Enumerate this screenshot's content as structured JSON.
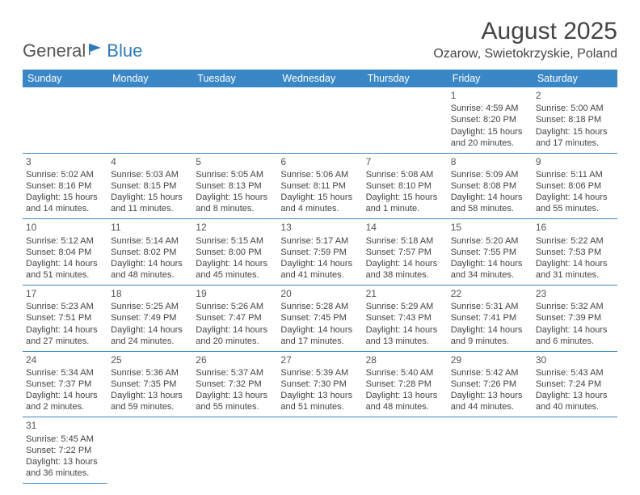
{
  "logo": {
    "general": "General",
    "blue": "Blue"
  },
  "title": "August 2025",
  "location": "Ozarow, Swietokrzyskie, Poland",
  "colors": {
    "header_bg": "#3a87c8",
    "header_text": "#ffffff",
    "border": "#3a87c8",
    "text": "#3a3a3a",
    "logo_blue": "#2c7bbf"
  },
  "day_headers": [
    "Sunday",
    "Monday",
    "Tuesday",
    "Wednesday",
    "Thursday",
    "Friday",
    "Saturday"
  ],
  "weeks": [
    [
      null,
      null,
      null,
      null,
      null,
      {
        "n": "1",
        "sr": "Sunrise: 4:59 AM",
        "ss": "Sunset: 8:20 PM",
        "dl": "Daylight: 15 hours and 20 minutes."
      },
      {
        "n": "2",
        "sr": "Sunrise: 5:00 AM",
        "ss": "Sunset: 8:18 PM",
        "dl": "Daylight: 15 hours and 17 minutes."
      }
    ],
    [
      {
        "n": "3",
        "sr": "Sunrise: 5:02 AM",
        "ss": "Sunset: 8:16 PM",
        "dl": "Daylight: 15 hours and 14 minutes."
      },
      {
        "n": "4",
        "sr": "Sunrise: 5:03 AM",
        "ss": "Sunset: 8:15 PM",
        "dl": "Daylight: 15 hours and 11 minutes."
      },
      {
        "n": "5",
        "sr": "Sunrise: 5:05 AM",
        "ss": "Sunset: 8:13 PM",
        "dl": "Daylight: 15 hours and 8 minutes."
      },
      {
        "n": "6",
        "sr": "Sunrise: 5:06 AM",
        "ss": "Sunset: 8:11 PM",
        "dl": "Daylight: 15 hours and 4 minutes."
      },
      {
        "n": "7",
        "sr": "Sunrise: 5:08 AM",
        "ss": "Sunset: 8:10 PM",
        "dl": "Daylight: 15 hours and 1 minute."
      },
      {
        "n": "8",
        "sr": "Sunrise: 5:09 AM",
        "ss": "Sunset: 8:08 PM",
        "dl": "Daylight: 14 hours and 58 minutes."
      },
      {
        "n": "9",
        "sr": "Sunrise: 5:11 AM",
        "ss": "Sunset: 8:06 PM",
        "dl": "Daylight: 14 hours and 55 minutes."
      }
    ],
    [
      {
        "n": "10",
        "sr": "Sunrise: 5:12 AM",
        "ss": "Sunset: 8:04 PM",
        "dl": "Daylight: 14 hours and 51 minutes."
      },
      {
        "n": "11",
        "sr": "Sunrise: 5:14 AM",
        "ss": "Sunset: 8:02 PM",
        "dl": "Daylight: 14 hours and 48 minutes."
      },
      {
        "n": "12",
        "sr": "Sunrise: 5:15 AM",
        "ss": "Sunset: 8:00 PM",
        "dl": "Daylight: 14 hours and 45 minutes."
      },
      {
        "n": "13",
        "sr": "Sunrise: 5:17 AM",
        "ss": "Sunset: 7:59 PM",
        "dl": "Daylight: 14 hours and 41 minutes."
      },
      {
        "n": "14",
        "sr": "Sunrise: 5:18 AM",
        "ss": "Sunset: 7:57 PM",
        "dl": "Daylight: 14 hours and 38 minutes."
      },
      {
        "n": "15",
        "sr": "Sunrise: 5:20 AM",
        "ss": "Sunset: 7:55 PM",
        "dl": "Daylight: 14 hours and 34 minutes."
      },
      {
        "n": "16",
        "sr": "Sunrise: 5:22 AM",
        "ss": "Sunset: 7:53 PM",
        "dl": "Daylight: 14 hours and 31 minutes."
      }
    ],
    [
      {
        "n": "17",
        "sr": "Sunrise: 5:23 AM",
        "ss": "Sunset: 7:51 PM",
        "dl": "Daylight: 14 hours and 27 minutes."
      },
      {
        "n": "18",
        "sr": "Sunrise: 5:25 AM",
        "ss": "Sunset: 7:49 PM",
        "dl": "Daylight: 14 hours and 24 minutes."
      },
      {
        "n": "19",
        "sr": "Sunrise: 5:26 AM",
        "ss": "Sunset: 7:47 PM",
        "dl": "Daylight: 14 hours and 20 minutes."
      },
      {
        "n": "20",
        "sr": "Sunrise: 5:28 AM",
        "ss": "Sunset: 7:45 PM",
        "dl": "Daylight: 14 hours and 17 minutes."
      },
      {
        "n": "21",
        "sr": "Sunrise: 5:29 AM",
        "ss": "Sunset: 7:43 PM",
        "dl": "Daylight: 14 hours and 13 minutes."
      },
      {
        "n": "22",
        "sr": "Sunrise: 5:31 AM",
        "ss": "Sunset: 7:41 PM",
        "dl": "Daylight: 14 hours and 9 minutes."
      },
      {
        "n": "23",
        "sr": "Sunrise: 5:32 AM",
        "ss": "Sunset: 7:39 PM",
        "dl": "Daylight: 14 hours and 6 minutes."
      }
    ],
    [
      {
        "n": "24",
        "sr": "Sunrise: 5:34 AM",
        "ss": "Sunset: 7:37 PM",
        "dl": "Daylight: 14 hours and 2 minutes."
      },
      {
        "n": "25",
        "sr": "Sunrise: 5:36 AM",
        "ss": "Sunset: 7:35 PM",
        "dl": "Daylight: 13 hours and 59 minutes."
      },
      {
        "n": "26",
        "sr": "Sunrise: 5:37 AM",
        "ss": "Sunset: 7:32 PM",
        "dl": "Daylight: 13 hours and 55 minutes."
      },
      {
        "n": "27",
        "sr": "Sunrise: 5:39 AM",
        "ss": "Sunset: 7:30 PM",
        "dl": "Daylight: 13 hours and 51 minutes."
      },
      {
        "n": "28",
        "sr": "Sunrise: 5:40 AM",
        "ss": "Sunset: 7:28 PM",
        "dl": "Daylight: 13 hours and 48 minutes."
      },
      {
        "n": "29",
        "sr": "Sunrise: 5:42 AM",
        "ss": "Sunset: 7:26 PM",
        "dl": "Daylight: 13 hours and 44 minutes."
      },
      {
        "n": "30",
        "sr": "Sunrise: 5:43 AM",
        "ss": "Sunset: 7:24 PM",
        "dl": "Daylight: 13 hours and 40 minutes."
      }
    ],
    [
      {
        "n": "31",
        "sr": "Sunrise: 5:45 AM",
        "ss": "Sunset: 7:22 PM",
        "dl": "Daylight: 13 hours and 36 minutes."
      },
      null,
      null,
      null,
      null,
      null,
      null
    ]
  ]
}
